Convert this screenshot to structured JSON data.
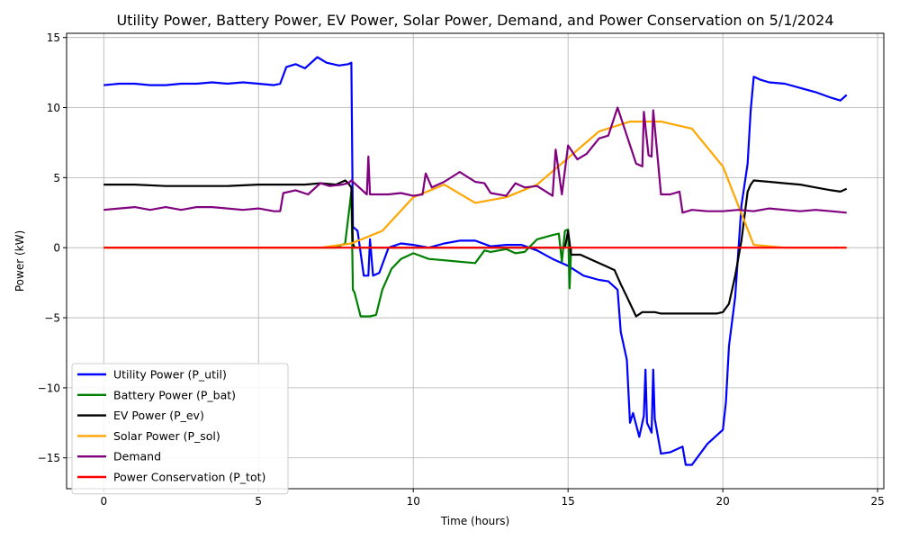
{
  "chart_data": {
    "type": "line",
    "title": "Utility Power, Battery Power, EV Power, Solar Power, Demand, and Power Conservation on 5/1/2024",
    "xlabel": "Time (hours)",
    "ylabel": "Power (kW)",
    "xlim": [
      -1.2,
      25.2
    ],
    "ylim": [
      -17.2,
      15.3
    ],
    "xticks": [
      0,
      5,
      10,
      15,
      20,
      25
    ],
    "yticks": [
      -15,
      -10,
      -5,
      0,
      5,
      10,
      15
    ],
    "grid": true,
    "legend_position": "lower-left",
    "series": [
      {
        "name": "Utility Power (P_util)",
        "color": "#0000ff",
        "x": [
          0,
          0.5,
          1,
          1.5,
          2,
          2.5,
          3,
          3.5,
          4,
          4.5,
          5,
          5.5,
          5.7,
          5.9,
          6.2,
          6.5,
          6.9,
          7.2,
          7.6,
          7.9,
          8.0,
          8.05,
          8.2,
          8.4,
          8.55,
          8.6,
          8.7,
          8.9,
          9.2,
          9.6,
          10,
          10.5,
          11,
          11.5,
          12,
          12.5,
          13,
          13.5,
          14,
          14.5,
          15,
          15.5,
          16,
          16.3,
          16.6,
          16.7,
          16.9,
          17.0,
          17.1,
          17.3,
          17.45,
          17.5,
          17.55,
          17.7,
          17.75,
          17.8,
          18.0,
          18.3,
          18.7,
          18.8,
          19.0,
          19.5,
          20.0,
          20.1,
          20.2,
          20.4,
          20.6,
          20.8,
          20.9,
          21.0,
          21.2,
          21.5,
          22,
          22.5,
          23,
          23.5,
          23.8,
          24
        ],
        "y": [
          11.6,
          11.7,
          11.7,
          11.6,
          11.6,
          11.7,
          11.7,
          11.8,
          11.7,
          11.8,
          11.7,
          11.6,
          11.7,
          12.9,
          13.1,
          12.8,
          13.6,
          13.2,
          13.0,
          13.1,
          13.2,
          1.5,
          1.2,
          -2.0,
          -2.0,
          0.6,
          -2.0,
          -1.8,
          0.0,
          0.3,
          0.2,
          0.0,
          0.3,
          0.5,
          0.5,
          0.1,
          0.2,
          0.2,
          -0.2,
          -0.8,
          -1.3,
          -2.0,
          -2.3,
          -2.4,
          -3.0,
          -6.0,
          -8.0,
          -12.5,
          -11.8,
          -13.5,
          -12.0,
          -8.7,
          -12.5,
          -13.2,
          -8.7,
          -12.2,
          -14.7,
          -14.6,
          -14.2,
          -15.5,
          -15.5,
          -14.0,
          -13.0,
          -11.0,
          -7.0,
          -3.5,
          3.0,
          6.0,
          9.8,
          12.2,
          12.0,
          11.8,
          11.7,
          11.4,
          11.1,
          10.7,
          10.5,
          10.9
        ]
      },
      {
        "name": "Battery Power (P_bat)",
        "color": "#008000",
        "x": [
          0,
          5,
          6,
          7,
          7.5,
          7.8,
          8.0,
          8.05,
          8.1,
          8.3,
          8.6,
          8.8,
          9.0,
          9.3,
          9.6,
          10,
          10.5,
          11,
          11.5,
          12,
          12.3,
          12.5,
          13,
          13.3,
          13.6,
          14,
          14.5,
          14.7,
          14.8,
          14.9,
          15.0,
          15.05,
          15.1
        ],
        "y": [
          0,
          0,
          0,
          0,
          0,
          0.3,
          4.0,
          -3.0,
          -3.2,
          -4.9,
          -4.9,
          -4.8,
          -3.0,
          -1.5,
          -0.8,
          -0.4,
          -0.8,
          -0.9,
          -1.0,
          -1.1,
          -0.2,
          -0.3,
          -0.1,
          -0.4,
          -0.3,
          0.6,
          0.9,
          1.0,
          -1.0,
          1.2,
          1.3,
          -2.9,
          0
        ]
      },
      {
        "name": "EV Power (P_ev)",
        "color": "#000000",
        "x": [
          0,
          1,
          2,
          3,
          4,
          5,
          5.5,
          6,
          6.5,
          7,
          7.5,
          7.8,
          7.9,
          8.0,
          8.05,
          8.1,
          8.5,
          9,
          10,
          11,
          12,
          13,
          14,
          14.9,
          15.0,
          15.1,
          15.4,
          15.8,
          16.2,
          16.5,
          16.7,
          16.9,
          17.2,
          17.4,
          17.8,
          18,
          19,
          19.8,
          20.0,
          20.2,
          20.4,
          20.6,
          20.8,
          20.9,
          21.0,
          21.5,
          22,
          22.5,
          23,
          23.5,
          23.8,
          24
        ],
        "y": [
          4.5,
          4.5,
          4.4,
          4.4,
          4.4,
          4.5,
          4.5,
          4.5,
          4.5,
          4.6,
          4.5,
          4.8,
          4.6,
          4.3,
          0.3,
          0.0,
          0.0,
          0.0,
          0.0,
          0.0,
          0.0,
          0.0,
          0.0,
          0.0,
          1.2,
          -0.5,
          -0.5,
          -0.9,
          -1.3,
          -1.6,
          -2.6,
          -3.5,
          -4.9,
          -4.6,
          -4.6,
          -4.7,
          -4.7,
          -4.7,
          -4.6,
          -4.0,
          -2.0,
          0.5,
          4.0,
          4.5,
          4.8,
          4.7,
          4.6,
          4.5,
          4.3,
          4.1,
          4.0,
          4.2
        ]
      },
      {
        "name": "Solar Power (P_sol)",
        "color": "#ffa500",
        "x": [
          0,
          1,
          2,
          3,
          4,
          5,
          6,
          7,
          8,
          9,
          10,
          11,
          12,
          13,
          14,
          15,
          16,
          17,
          18,
          19,
          20,
          21,
          22,
          23,
          24
        ],
        "y": [
          0,
          0,
          0,
          0,
          0,
          0,
          0,
          0,
          0.3,
          1.2,
          3.6,
          4.5,
          3.2,
          3.6,
          4.5,
          6.4,
          8.3,
          9.0,
          9.0,
          8.5,
          5.8,
          0.2,
          0,
          0,
          0
        ]
      },
      {
        "name": "Demand",
        "color": "#800080",
        "x": [
          0,
          0.5,
          1,
          1.5,
          2,
          2.5,
          3,
          3.5,
          4,
          4.5,
          5,
          5.5,
          5.7,
          5.8,
          6.2,
          6.6,
          7.0,
          7.3,
          7.7,
          7.9,
          8.0,
          8.2,
          8.5,
          8.55,
          8.6,
          8.8,
          9.2,
          9.6,
          10,
          10.3,
          10.4,
          10.6,
          11,
          11.5,
          12,
          12.3,
          12.5,
          13,
          13.3,
          13.6,
          14,
          14.5,
          14.6,
          14.8,
          15.0,
          15.3,
          15.6,
          16,
          16.3,
          16.6,
          16.9,
          17.2,
          17.4,
          17.45,
          17.6,
          17.7,
          17.75,
          17.9,
          18.0,
          18.3,
          18.6,
          18.7,
          19,
          19.5,
          20,
          20.5,
          21,
          21.5,
          22,
          22.5,
          23,
          23.5,
          24
        ],
        "y": [
          2.7,
          2.8,
          2.9,
          2.7,
          2.9,
          2.7,
          2.9,
          2.9,
          2.8,
          2.7,
          2.8,
          2.6,
          2.6,
          3.9,
          4.1,
          3.8,
          4.6,
          4.4,
          4.5,
          4.6,
          4.8,
          4.4,
          3.8,
          6.5,
          3.8,
          3.8,
          3.8,
          3.9,
          3.7,
          3.8,
          5.3,
          4.3,
          4.7,
          5.4,
          4.7,
          4.6,
          3.9,
          3.7,
          4.6,
          4.3,
          4.4,
          3.7,
          7.0,
          3.8,
          7.3,
          6.3,
          6.7,
          7.8,
          8.0,
          10.0,
          8.0,
          6.0,
          5.8,
          9.7,
          6.6,
          6.5,
          9.8,
          6.3,
          3.8,
          3.8,
          4.0,
          2.5,
          2.7,
          2.6,
          2.6,
          2.7,
          2.6,
          2.8,
          2.7,
          2.6,
          2.7,
          2.6,
          2.5
        ]
      },
      {
        "name": "Power Conservation (P_tot)",
        "color": "#ff0000",
        "x": [
          0,
          24
        ],
        "y": [
          0,
          0
        ]
      }
    ]
  }
}
